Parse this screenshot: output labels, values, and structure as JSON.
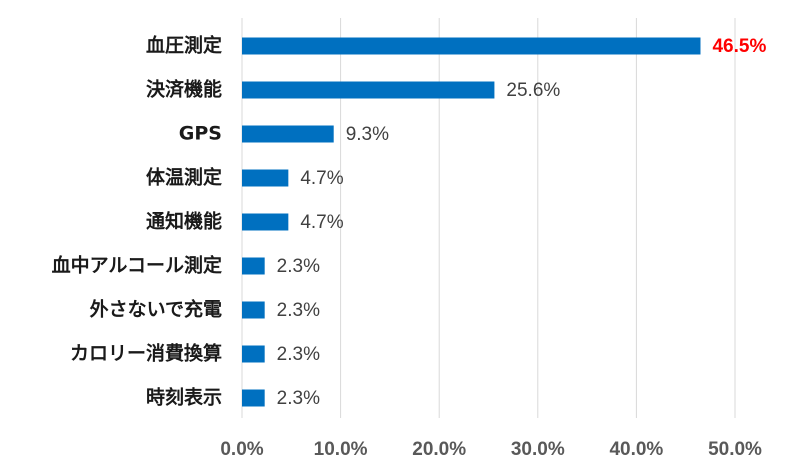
{
  "chart_data": {
    "type": "bar",
    "orientation": "horizontal",
    "categories": [
      "血圧測定",
      "決済機能",
      "GPS",
      "体温測定",
      "通知機能",
      "血中アルコール測定",
      "外さないで充電",
      "カロリー消費換算",
      "時刻表示"
    ],
    "values": [
      46.5,
      25.6,
      9.3,
      4.7,
      4.7,
      2.3,
      2.3,
      2.3,
      2.3
    ],
    "value_labels": [
      "46.5%",
      "25.6%",
      "9.3%",
      "4.7%",
      "4.7%",
      "2.3%",
      "2.3%",
      "2.3%",
      "2.3%"
    ],
    "highlight_index": 0,
    "xlim": [
      0,
      50
    ],
    "x_ticks": [
      0,
      10,
      20,
      30,
      40,
      50
    ],
    "x_tick_labels": [
      "0.0%",
      "10.0%",
      "20.0%",
      "30.0%",
      "40.0%",
      "50.0%"
    ],
    "grid": true,
    "legend": "none",
    "title": "",
    "xlabel": "",
    "ylabel": "",
    "colors": {
      "bar": "#0070c0",
      "highlight_label": "#ff0000",
      "grid": "#d9d9d9"
    }
  }
}
